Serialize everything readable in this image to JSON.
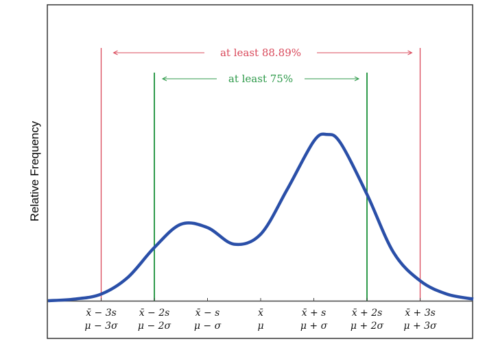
{
  "chart_data": {
    "type": "line",
    "title": "",
    "xlabel": "",
    "ylabel": "Relative Frequency",
    "xlim": [
      -4,
      4
    ],
    "ylim": [
      0,
      1.78
    ],
    "grid": false,
    "x_ticks": [
      {
        "value": -3,
        "line1": "x̄ − 3s",
        "line2": "μ − 3σ"
      },
      {
        "value": -2,
        "line1": "x̄ − 2s",
        "line2": "μ − 2σ"
      },
      {
        "value": -1,
        "line1": "x̄ − s",
        "line2": "μ − σ"
      },
      {
        "value": 0,
        "line1": "x̄",
        "line2": "μ"
      },
      {
        "value": 1,
        "line1": "x̄ + s",
        "line2": "μ + σ"
      },
      {
        "value": 2,
        "line1": "x̄ + 2s",
        "line2": "μ + 2σ"
      },
      {
        "value": 3,
        "line1": "x̄ + 3s",
        "line2": "μ + 3σ"
      }
    ],
    "series": [
      {
        "color": "#2a4fa8",
        "x": [
          -4,
          -3.5,
          -3,
          -2.5,
          -2,
          -1.5,
          -1,
          -0.5,
          0,
          0.5,
          1,
          1.25,
          1.5,
          2,
          2.5,
          3,
          3.5,
          4
        ],
        "y": [
          0.0,
          0.01,
          0.04,
          0.14,
          0.32,
          0.46,
          0.44,
          0.34,
          0.4,
          0.67,
          0.96,
          1.0,
          0.95,
          0.64,
          0.29,
          0.12,
          0.04,
          0.01
        ]
      }
    ],
    "annotations": [
      {
        "label": "at least 88.89%",
        "from": -3,
        "to": 3,
        "color": "#d9485a"
      },
      {
        "label": "at least 75%",
        "from": -2,
        "to": 2,
        "color": "#2e9a4a"
      }
    ]
  }
}
